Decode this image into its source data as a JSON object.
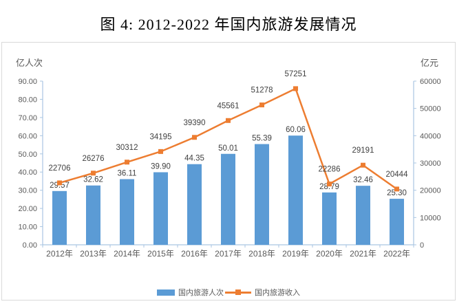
{
  "title": "图 4: 2012-2022 年国内旅游发展情况",
  "colors": {
    "bar": "#5B9BD5",
    "line": "#ED7D31",
    "axis_line": "#A9C5E2",
    "tick_text": "#595959",
    "data_label_text": "#404040",
    "box_border": "#D9D9D9"
  },
  "chart_data": {
    "type": "bar+line combo",
    "title": "图 4: 2012-2022 年国内旅游发展情况",
    "categories": [
      "2012年",
      "2013年",
      "2014年",
      "2015年",
      "2016年",
      "2017年",
      "2018年",
      "2019年",
      "2020年",
      "2021年",
      "2022年"
    ],
    "series": [
      {
        "name": "国内旅游人次",
        "type": "bar",
        "axis": "left",
        "values": [
          29.57,
          32.62,
          36.11,
          39.9,
          44.35,
          50.01,
          55.39,
          60.06,
          28.79,
          32.46,
          25.3
        ]
      },
      {
        "name": "国内旅游收入",
        "type": "line",
        "axis": "right",
        "values": [
          22706,
          26276,
          30312,
          34195,
          39390,
          45561,
          51278,
          57251,
          22286,
          29191,
          20444
        ]
      }
    ],
    "left_axis": {
      "label": "亿人次",
      "min": 0,
      "max": 90,
      "step": 10,
      "tick_format": "0.00"
    },
    "right_axis": {
      "label": "亿元",
      "min": 0,
      "max": 60000,
      "step": 10000,
      "tick_format": "0"
    },
    "grid": false,
    "legend_position": "bottom",
    "data_labels": true
  }
}
